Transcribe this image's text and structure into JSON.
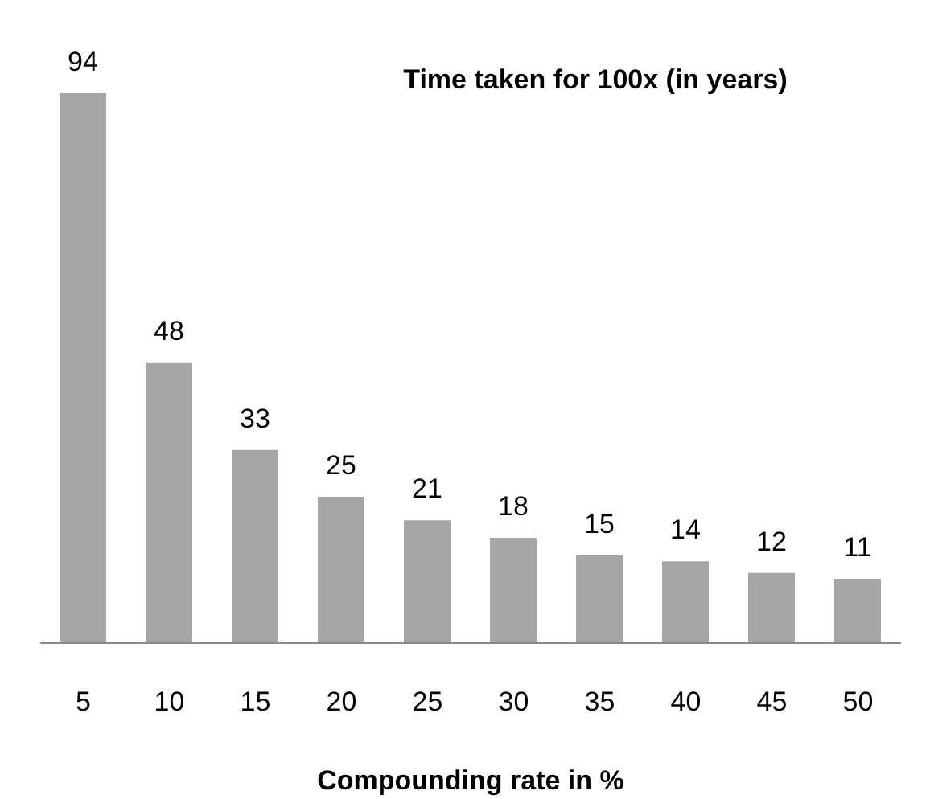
{
  "chart_data": {
    "type": "bar",
    "title": "Time taken for 100x (in years)",
    "xlabel": "Compounding rate in %",
    "categories": [
      "5",
      "10",
      "15",
      "20",
      "25",
      "30",
      "35",
      "40",
      "45",
      "50"
    ],
    "values": [
      94,
      48,
      33,
      25,
      21,
      18,
      15,
      14,
      12,
      11
    ],
    "color": "#a6a6a6",
    "data_labels": true
  }
}
